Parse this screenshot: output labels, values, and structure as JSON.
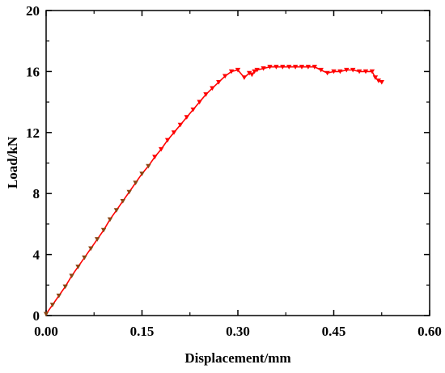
{
  "chart_data": {
    "type": "line",
    "title": "",
    "xlabel": "Displacement/mm",
    "ylabel": "Load/kN",
    "xlim": [
      0,
      0.6
    ],
    "ylim": [
      0,
      20
    ],
    "xticks": [
      0.0,
      0.15,
      0.3,
      0.45,
      0.6
    ],
    "xtick_labels": [
      "0.00",
      "0.15",
      "0.30",
      "0.45",
      "0.60"
    ],
    "yticks": [
      0,
      4,
      8,
      12,
      16,
      20
    ],
    "ytick_labels": [
      "0",
      "4",
      "8",
      "12",
      "16",
      "20"
    ],
    "grid": false,
    "legend": "none",
    "series": [
      {
        "color": "#ff0000",
        "marker_color": "#8b4513",
        "marker": "triangle-down",
        "x": [
          0.0,
          0.01,
          0.02,
          0.03,
          0.04,
          0.05,
          0.06,
          0.07,
          0.08,
          0.09,
          0.1,
          0.11,
          0.12,
          0.13,
          0.14,
          0.15,
          0.16,
          0.17,
          0.18,
          0.19,
          0.2,
          0.21,
          0.22,
          0.23,
          0.24,
          0.25,
          0.26,
          0.27,
          0.28,
          0.29,
          0.3,
          0.31,
          0.318,
          0.322,
          0.326,
          0.33,
          0.34,
          0.35,
          0.36,
          0.37,
          0.38,
          0.39,
          0.4,
          0.41,
          0.42,
          0.43,
          0.44,
          0.45,
          0.46,
          0.47,
          0.48,
          0.49,
          0.5,
          0.51,
          0.515,
          0.52,
          0.525
        ],
        "y": [
          0.1,
          0.7,
          1.3,
          1.9,
          2.6,
          3.2,
          3.8,
          4.4,
          5.0,
          5.6,
          6.3,
          6.9,
          7.5,
          8.1,
          8.7,
          9.3,
          9.8,
          10.4,
          10.9,
          11.5,
          12.0,
          12.5,
          13.0,
          13.5,
          14.0,
          14.5,
          14.9,
          15.3,
          15.7,
          16.0,
          16.1,
          15.6,
          15.9,
          15.8,
          16.0,
          16.1,
          16.2,
          16.3,
          16.3,
          16.3,
          16.3,
          16.3,
          16.3,
          16.3,
          16.3,
          16.1,
          15.9,
          16.0,
          16.0,
          16.1,
          16.1,
          16.0,
          16.0,
          16.0,
          15.6,
          15.4,
          15.3
        ]
      }
    ]
  }
}
